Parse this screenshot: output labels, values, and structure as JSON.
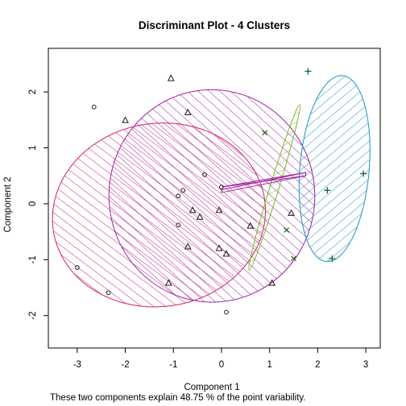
{
  "chart_data": {
    "type": "scatter",
    "title": "Discriminant Plot - 4 Clusters",
    "xlabel": "Component 1",
    "ylabel": "Component 2",
    "note": "These two components explain 48.75 % of the point variability.",
    "xlim": [
      -3.6,
      3.3
    ],
    "ylim": [
      -2.58,
      2.78
    ],
    "xticks": [
      -3,
      -2,
      -1,
      0,
      1,
      2,
      3
    ],
    "yticks": [
      -2,
      -1,
      0,
      1,
      2
    ],
    "xtick_labels": [
      "-3",
      "-2",
      "-1",
      "0",
      "1",
      "2",
      "3"
    ],
    "ytick_labels": [
      "-2",
      "-1",
      "0",
      "1",
      "2"
    ],
    "grid": false,
    "legend": "none",
    "clusters": [
      {
        "id": 1,
        "marker": "circle",
        "color": "#cc1f6e",
        "points": [
          [
            -2.65,
            1.73
          ],
          [
            -3.0,
            -1.14
          ],
          [
            -2.35,
            -1.59
          ],
          [
            0.1,
            -1.94
          ],
          [
            0.0,
            0.3
          ],
          [
            -0.35,
            0.52
          ],
          [
            -0.8,
            0.24
          ],
          [
            -0.9,
            0.14
          ],
          [
            -0.9,
            -0.38
          ]
        ],
        "ellipse": {
          "cx": -1.3,
          "cy": -0.2,
          "rx": 2.22,
          "ry": 1.64,
          "angle": -8
        }
      },
      {
        "id": 2,
        "marker": "triangle",
        "color": "#a020a0",
        "points": [
          [
            -1.05,
            2.24
          ],
          [
            -0.7,
            1.63
          ],
          [
            -2.0,
            1.49
          ],
          [
            -0.6,
            -0.12
          ],
          [
            -0.45,
            -0.24
          ],
          [
            -0.05,
            -0.12
          ],
          [
            -0.05,
            -0.8
          ],
          [
            0.1,
            -0.9
          ],
          [
            -0.7,
            -0.77
          ],
          [
            0.6,
            -0.4
          ],
          [
            1.45,
            -0.17
          ],
          [
            1.05,
            -1.42
          ],
          [
            -1.1,
            -1.42
          ]
        ],
        "ellipse": {
          "cx": -0.2,
          "cy": 0.14,
          "rx": 2.14,
          "ry": 1.9,
          "angle": -3
        }
      },
      {
        "id": 3,
        "marker": "x",
        "color": "#7ab82e",
        "points": [
          [
            0.9,
            1.27
          ],
          [
            1.35,
            -0.47
          ],
          [
            1.5,
            -0.98
          ]
        ],
        "ellipse": {
          "cx": 1.1,
          "cy": 0.29,
          "rx": 1.8,
          "ry": 0.08,
          "angle": -73
        }
      },
      {
        "id": 4,
        "marker": "plus",
        "color": "#1b93c6",
        "points": [
          [
            1.8,
            2.37
          ],
          [
            2.95,
            0.54
          ],
          [
            2.2,
            0.24
          ],
          [
            2.3,
            -0.98
          ]
        ],
        "ellipse": {
          "cx": 2.35,
          "cy": 0.63,
          "rx": 1.94,
          "ry": 0.62,
          "angle": -85
        }
      }
    ],
    "connectors": [
      [
        [
          0.0,
          0.3
        ],
        [
          1.75,
          0.56
        ],
        [
          0.0,
          0.3
        ],
        [
          1.75,
          0.5
        ]
      ],
      [
        [
          0.0,
          0.25
        ],
        [
          1.75,
          0.56
        ],
        [
          0.0,
          0.2
        ],
        [
          1.75,
          0.5
        ]
      ]
    ]
  }
}
